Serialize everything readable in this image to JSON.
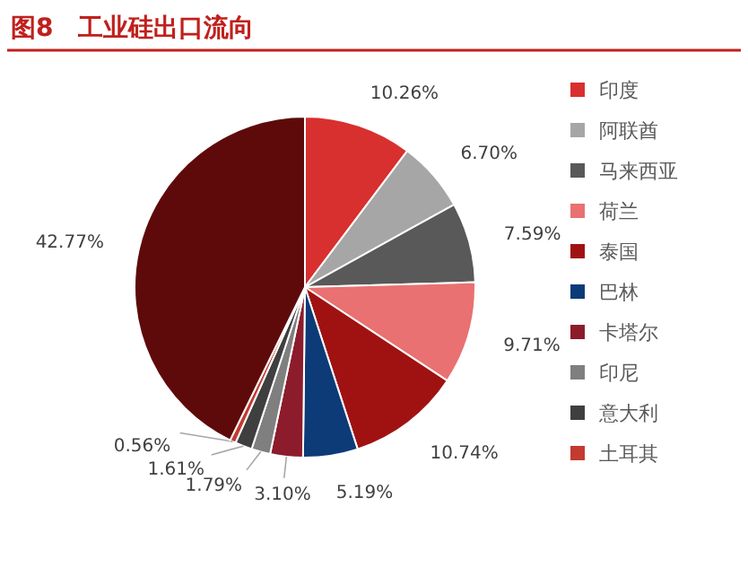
{
  "chart_data": {
    "type": "pie",
    "title": "图8　工业硅出口流向",
    "categories": [
      "印度",
      "阿联酋",
      "马来西亚",
      "荷兰",
      "泰国",
      "巴林",
      "卡塔尔",
      "印尼",
      "意大利",
      "土耳其",
      null
    ],
    "values": [
      10.26,
      6.7,
      7.59,
      9.71,
      10.74,
      5.19,
      3.1,
      1.79,
      1.61,
      0.56,
      42.77
    ],
    "colors": [
      "#d8302e",
      "#a6a6a6",
      "#595959",
      "#e97171",
      "#a01212",
      "#0c3b78",
      "#8c1c2c",
      "#7f7f7f",
      "#3f3f3f",
      "#c23a30",
      "#5e0a0a"
    ],
    "value_labels": [
      "10.26%",
      "6.70%",
      "7.59%",
      "9.71%",
      "10.74%",
      "5.19%",
      "3.10%",
      "1.79%",
      "1.61%",
      "0.56%",
      "42.77%"
    ],
    "legend": "right"
  }
}
